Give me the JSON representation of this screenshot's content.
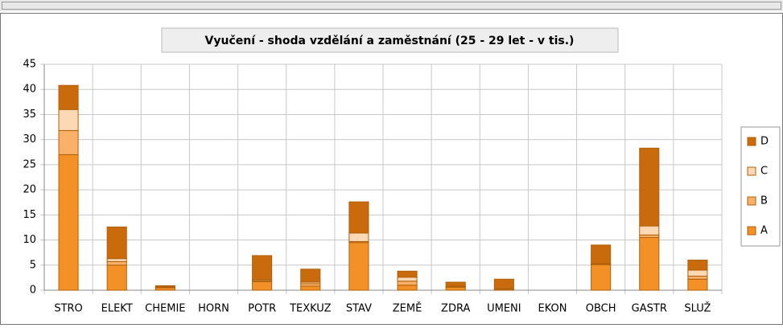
{
  "chart_data": {
    "type": "stacked_bar",
    "title": "Vyučení - shoda vzdělání a zaměstnání (25 - 29 let - v tis.)",
    "categories": [
      "STRO",
      "ELEKT",
      "CHEMIE",
      "HORN",
      "POTR",
      "TEXKUZ",
      "STAV",
      "ZEMĚ",
      "ZDRA",
      "UMENI",
      "EKON",
      "OBCH",
      "GASTR",
      "SLUŽ"
    ],
    "series": [
      {
        "name": "A",
        "color": "#f39127",
        "values": [
          27,
          5,
          0.5,
          0,
          1.7,
          0.8,
          9.5,
          1,
          0.6,
          0.2,
          0,
          5.1,
          10.5,
          2.2
        ]
      },
      {
        "name": "B",
        "color": "#f9b068",
        "values": [
          4.8,
          0.7,
          0.1,
          0,
          0.2,
          0.5,
          0.2,
          0.8,
          0.1,
          0,
          0,
          0.1,
          0.5,
          0.6
        ]
      },
      {
        "name": "C",
        "color": "#fdd8b4",
        "values": [
          4.2,
          0.6,
          0.1,
          0,
          0.2,
          0.3,
          1.7,
          0.8,
          0.1,
          0.1,
          0,
          0.1,
          1.8,
          1.2
        ]
      },
      {
        "name": "D",
        "color": "#c96a0c",
        "values": [
          4.8,
          6.3,
          0.2,
          0,
          4.8,
          2.6,
          6.2,
          1.2,
          0.8,
          1.9,
          0,
          3.7,
          15.5,
          2
        ]
      }
    ],
    "ylim": [
      0,
      45
    ],
    "yticks": [
      0,
      5,
      10,
      15,
      20,
      25,
      30,
      35,
      40,
      45
    ],
    "grid": true,
    "legend": "right"
  }
}
